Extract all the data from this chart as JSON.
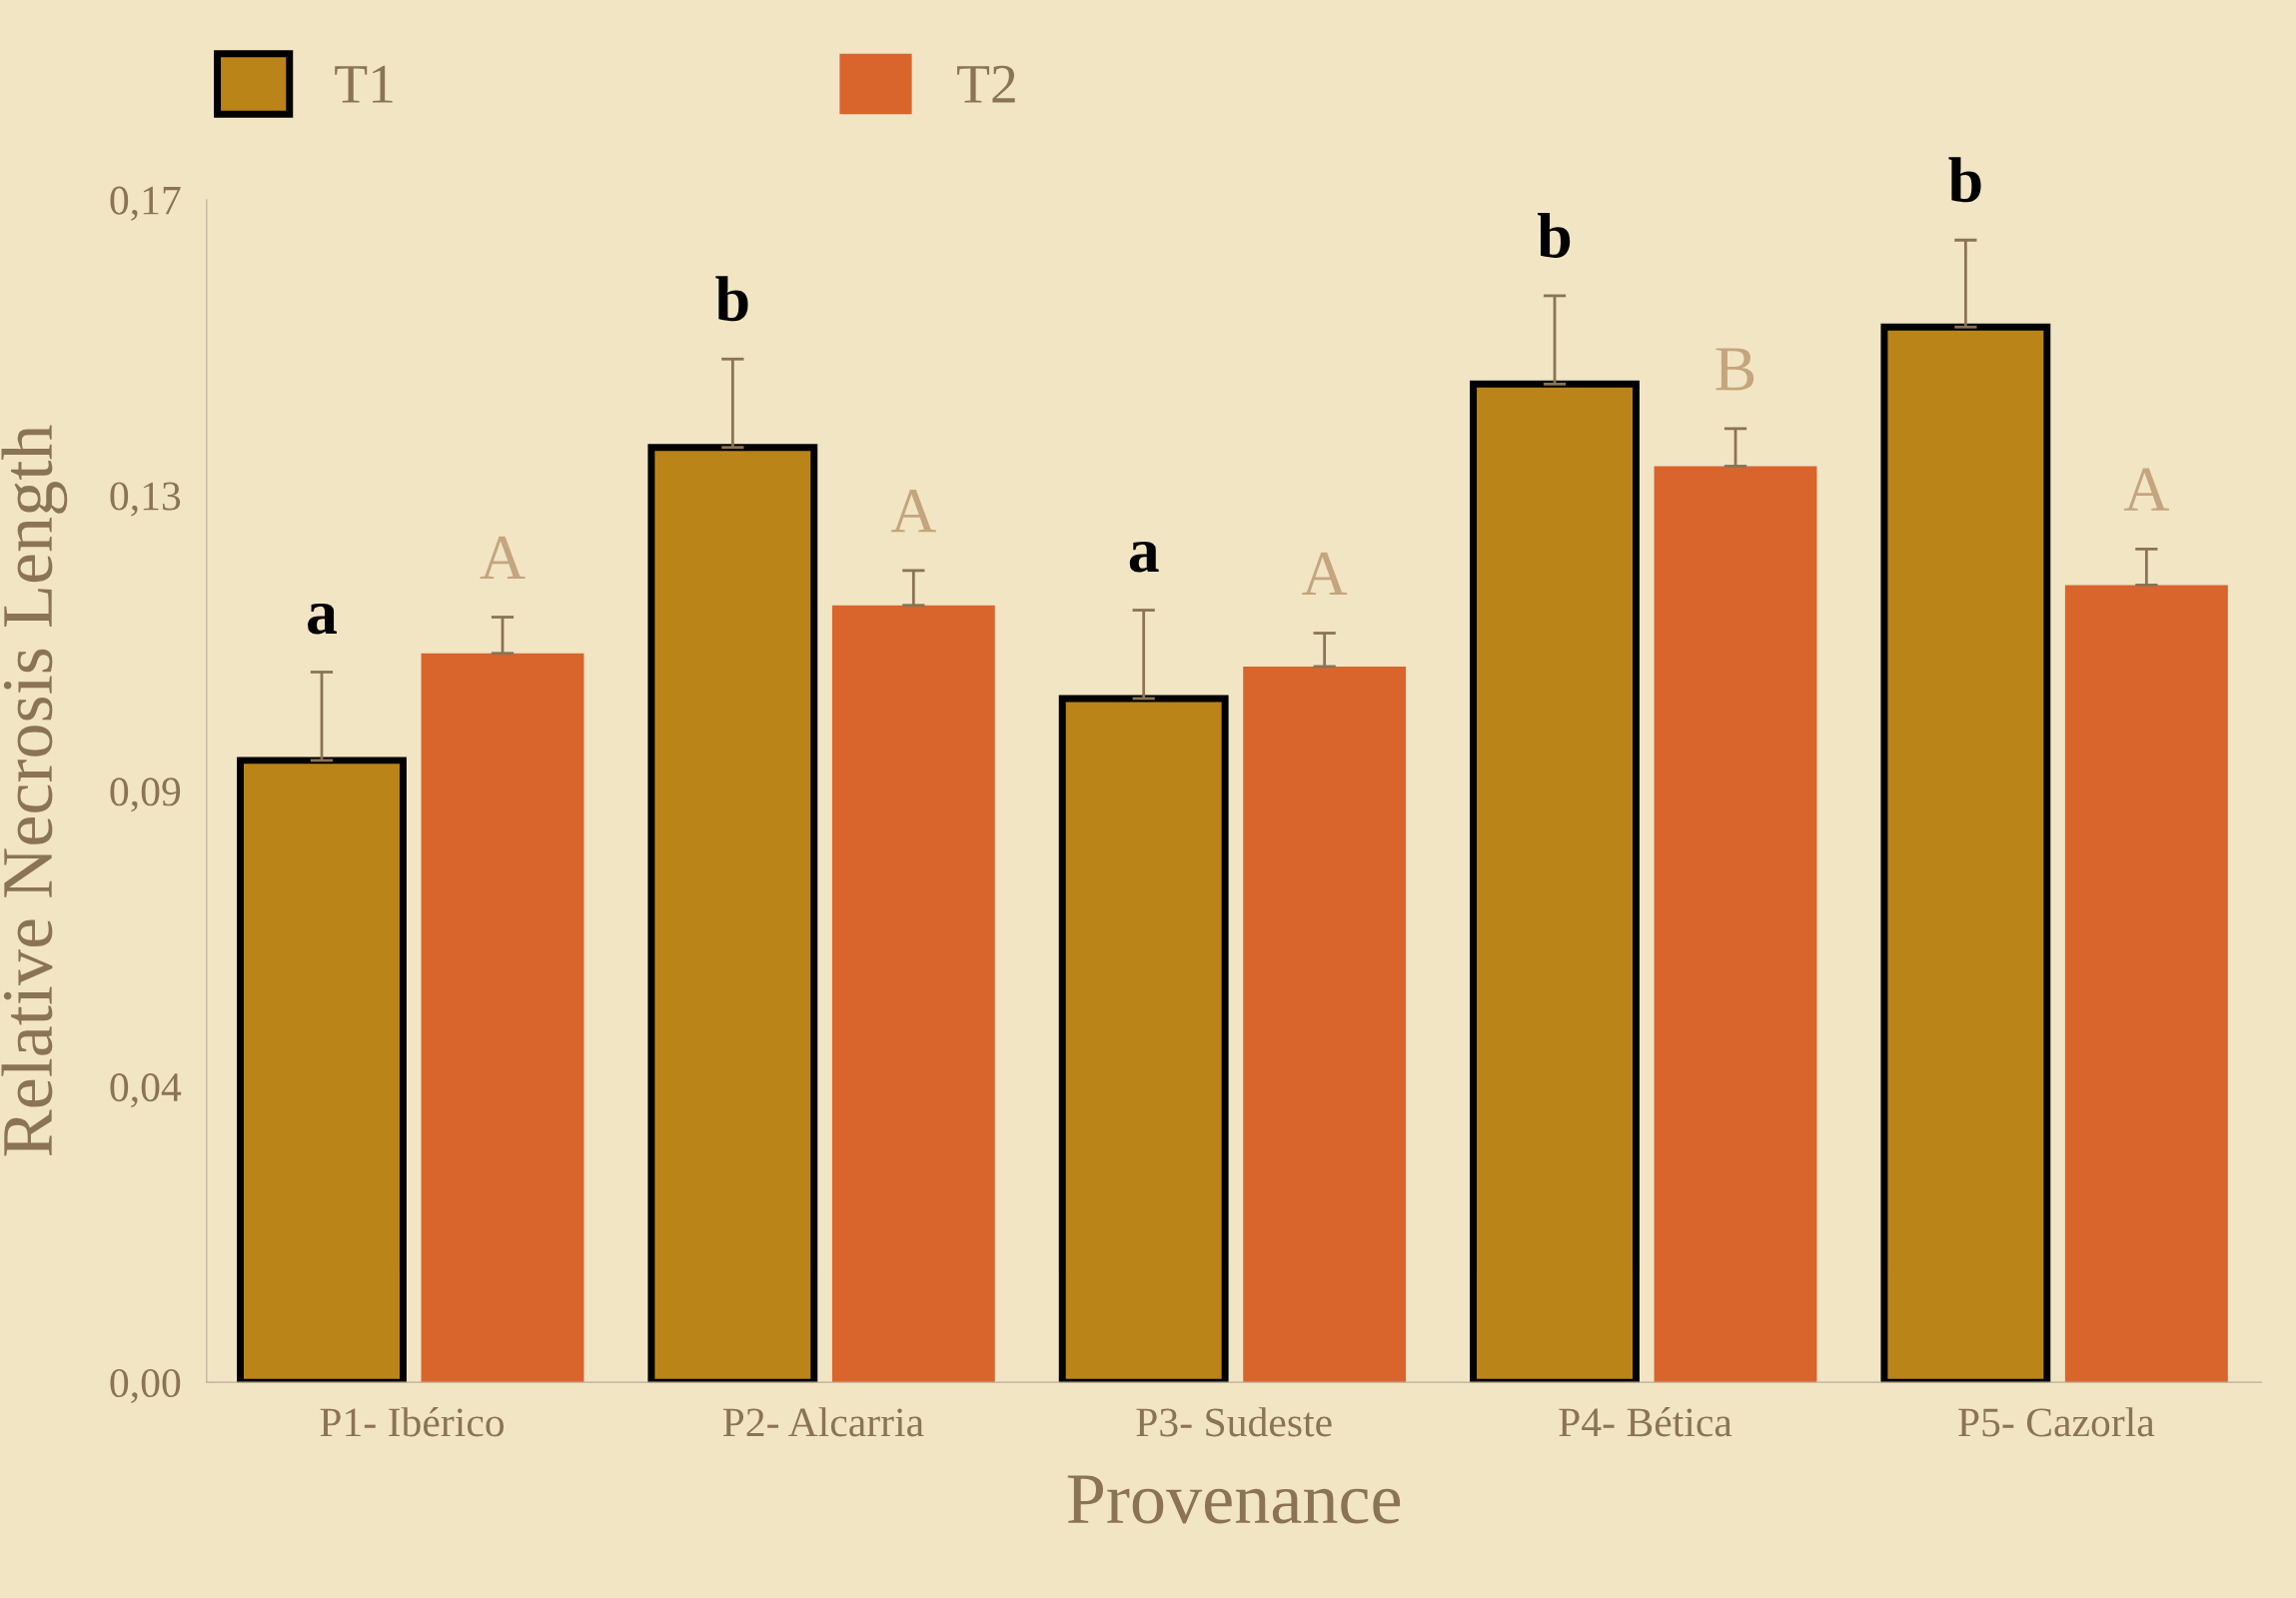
{
  "chart_data": {
    "type": "bar",
    "xlabel": "Provenance",
    "ylabel": "Relative Necrosis Length",
    "categories": [
      "P1- Ibérico",
      "P2- Alcarria",
      "P3- Sudeste",
      "P4- Bética",
      "P5- Cazorla"
    ],
    "series": [
      {
        "name": "T1",
        "color": "#bb8418",
        "values": [
          0.0894,
          0.1344,
          0.0983,
          0.1435,
          0.1517
        ],
        "errors": [
          [
            0.0894,
            0.1021
          ],
          [
            0.1344,
            0.1471
          ],
          [
            0.0983,
            0.111
          ],
          [
            0.1435,
            0.1562
          ],
          [
            0.1517,
            0.1642
          ]
        ]
      },
      {
        "name": "T2",
        "color": "#d9652c",
        "values": [
          0.1048,
          0.1117,
          0.1029,
          0.1317,
          0.1146
        ],
        "errors": [
          [
            0.1048,
            0.11
          ],
          [
            0.1117,
            0.1167
          ],
          [
            0.1029,
            0.1077
          ],
          [
            0.1317,
            0.1371
          ],
          [
            0.1146,
            0.1198
          ]
        ]
      }
    ],
    "ylim": [
      0,
      0.17
    ],
    "yticks": [
      {
        "value": 0,
        "label": "0,00"
      },
      {
        "value": 0.0425,
        "label": "0,04"
      },
      {
        "value": 0.085,
        "label": "0,09"
      },
      {
        "value": 0.1275,
        "label": "0,13"
      },
      {
        "value": 0.17,
        "label": "0,17"
      }
    ],
    "annotations": [
      "a",
      "b",
      "a",
      "b",
      "b",
      "A",
      "A",
      "A",
      "B",
      "A"
    ],
    "legend": "top",
    "grid": false
  }
}
